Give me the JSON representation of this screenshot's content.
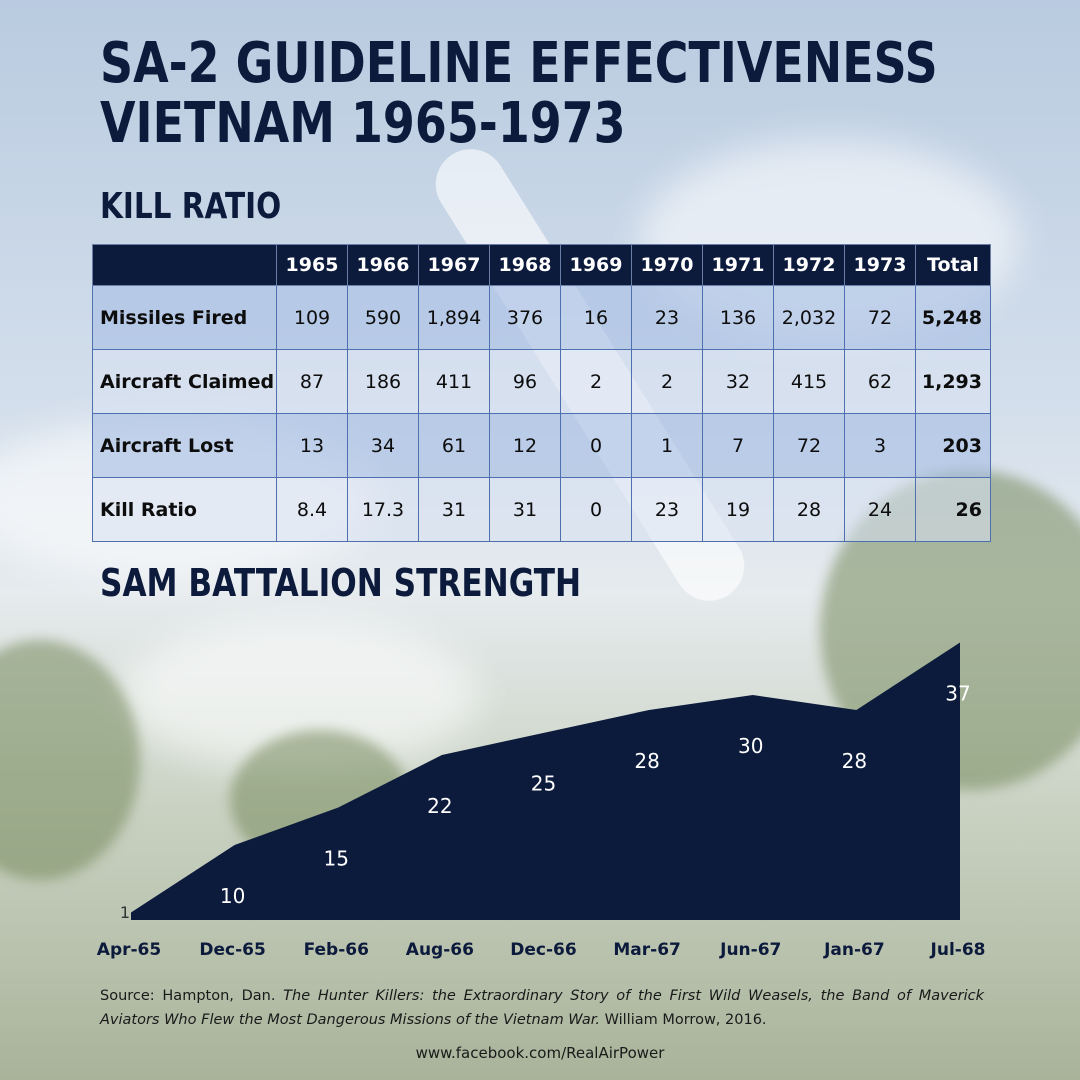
{
  "title_line1": "SA-2 GUIDELINE EFFECTIVENESS",
  "title_line2": "VIETNAM 1965-1973",
  "kill_ratio_heading": "KILL RATIO",
  "sam_heading": "SAM BATTALION STRENGTH",
  "colors": {
    "navy": "#0c1a3c",
    "table_row_dark": "#a8bee4",
    "table_row_light": "#d8e2f2",
    "table_border": "#4e6fb0"
  },
  "table": {
    "columns": [
      "",
      "1965",
      "1966",
      "1967",
      "1968",
      "1969",
      "1970",
      "1971",
      "1972",
      "1973",
      "Total"
    ],
    "rows": [
      {
        "label": "Missiles Fired",
        "values": [
          "109",
          "590",
          "1,894",
          "376",
          "16",
          "23",
          "136",
          "2,032",
          "72"
        ],
        "total": "5,248"
      },
      {
        "label": "Aircraft Claimed",
        "values": [
          "87",
          "186",
          "411",
          "96",
          "2",
          "2",
          "32",
          "415",
          "62"
        ],
        "total": "1,293"
      },
      {
        "label": "Aircraft Lost",
        "values": [
          "13",
          "34",
          "61",
          "12",
          "0",
          "1",
          "7",
          "72",
          "3"
        ],
        "total": "203"
      },
      {
        "label": "Kill Ratio",
        "values": [
          "8.4",
          "17.3",
          "31",
          "31",
          "0",
          "23",
          "19",
          "28",
          "24"
        ],
        "total": "26"
      }
    ]
  },
  "chart_data": {
    "type": "area",
    "title": "SAM BATTALION STRENGTH",
    "categories": [
      "Apr-65",
      "Dec-65",
      "Feb-66",
      "Aug-66",
      "Dec-66",
      "Mar-67",
      "Jun-67",
      "Jan-67",
      "Jul-68"
    ],
    "values": [
      1,
      10,
      15,
      22,
      25,
      28,
      30,
      28,
      37
    ],
    "ylim": [
      0,
      40
    ],
    "grid": false,
    "legend": "none",
    "fill_color": "#0c1a3c"
  },
  "source": {
    "prefix": "Source: Hampton, Dan.",
    "book_title": "The Hunter Killers: the Extraordinary Story of the First Wild Weasels, the Band of Maverick Aviators Who Flew the Most Dangerous Missions of the Vietnam War.",
    "suffix": "William Morrow, 2016."
  },
  "footer_url": "www.facebook.com/RealAirPower"
}
